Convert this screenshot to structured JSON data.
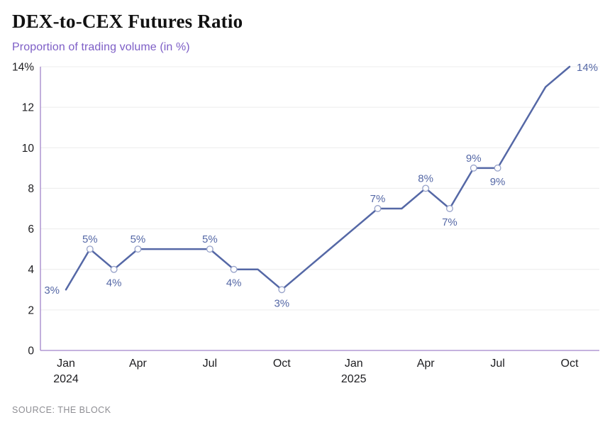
{
  "header": {
    "title": "DEX-to-CEX Futures Ratio",
    "subtitle": "Proportion of trading volume (in %)"
  },
  "footer": {
    "source": "SOURCE: THE BLOCK"
  },
  "chart_data": {
    "type": "line",
    "title": "DEX-to-CEX Futures Ratio",
    "subtitle": "Proportion of trading volume (in %)",
    "xlabel": "",
    "ylabel": "Proportion of trading volume (in %)",
    "ylim": [
      0,
      14
    ],
    "grid": "horizontal",
    "legend": "none",
    "x": [
      "Jan 2024",
      "Feb 2024",
      "Mar 2024",
      "Apr 2024",
      "May 2024",
      "Jun 2024",
      "Jul 2024",
      "Aug 2024",
      "Sep 2024",
      "Oct 2024",
      "Nov 2024",
      "Dec 2024",
      "Jan 2025",
      "Feb 2025",
      "Mar 2025",
      "Apr 2025",
      "May 2025",
      "Jun 2025",
      "Jul 2025",
      "Aug 2025",
      "Sep 2025",
      "Oct 2025"
    ],
    "values": [
      3,
      5,
      4,
      5,
      5,
      5,
      5,
      4,
      4,
      3,
      4,
      5,
      6,
      7,
      7,
      8,
      7,
      9,
      9,
      11,
      13,
      14
    ],
    "y_ticks": [
      {
        "value": 0,
        "label": "0"
      },
      {
        "value": 2,
        "label": "2"
      },
      {
        "value": 4,
        "label": "4"
      },
      {
        "value": 6,
        "label": "6"
      },
      {
        "value": 8,
        "label": "8"
      },
      {
        "value": 10,
        "label": "10"
      },
      {
        "value": 12,
        "label": "12"
      },
      {
        "value": 14,
        "label": "14%"
      }
    ],
    "x_ticks": [
      {
        "index": 0,
        "label": "Jan",
        "year": "2024"
      },
      {
        "index": 3,
        "label": "Apr",
        "year": ""
      },
      {
        "index": 6,
        "label": "Jul",
        "year": ""
      },
      {
        "index": 9,
        "label": "Oct",
        "year": ""
      },
      {
        "index": 12,
        "label": "Jan",
        "year": "2025"
      },
      {
        "index": 15,
        "label": "Apr",
        "year": ""
      },
      {
        "index": 18,
        "label": "Jul",
        "year": ""
      },
      {
        "index": 21,
        "label": "Oct",
        "year": ""
      }
    ],
    "marker_indices": [
      1,
      2,
      3,
      6,
      7,
      9,
      13,
      15,
      16,
      17,
      18
    ],
    "point_labels": [
      {
        "index": 0,
        "text": "3%",
        "position": "left"
      },
      {
        "index": 1,
        "text": "5%",
        "position": "above"
      },
      {
        "index": 2,
        "text": "4%",
        "position": "below"
      },
      {
        "index": 3,
        "text": "5%",
        "position": "above"
      },
      {
        "index": 6,
        "text": "5%",
        "position": "above"
      },
      {
        "index": 7,
        "text": "4%",
        "position": "below"
      },
      {
        "index": 9,
        "text": "3%",
        "position": "below"
      },
      {
        "index": 13,
        "text": "7%",
        "position": "above"
      },
      {
        "index": 15,
        "text": "8%",
        "position": "above"
      },
      {
        "index": 16,
        "text": "7%",
        "position": "below"
      },
      {
        "index": 17,
        "text": "9%",
        "position": "above"
      },
      {
        "index": 18,
        "text": "9%",
        "position": "below"
      },
      {
        "index": 21,
        "text": "14%",
        "position": "right"
      }
    ],
    "colors": {
      "line": "#5568a6",
      "marker_fill": "#ffffff",
      "marker_stroke": "#97a2c9",
      "point_label": "#5568a6",
      "grid": "#ececec",
      "axis": "#a284ca",
      "tick_label": "#1d1d20",
      "subtitle": "#7d5ec6",
      "title": "#111111",
      "source": "#8e8e93"
    }
  }
}
